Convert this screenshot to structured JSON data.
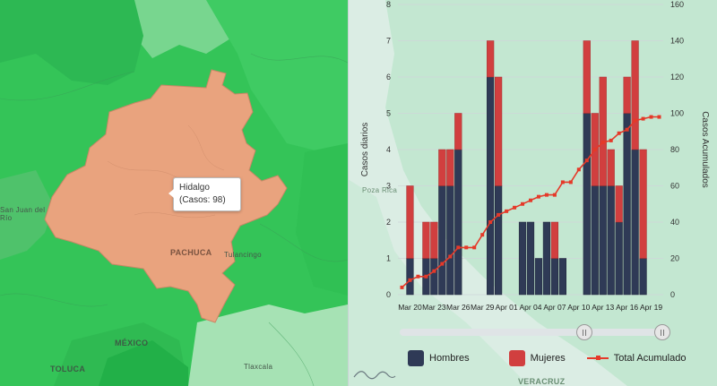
{
  "map": {
    "tooltip_title": "Hidalgo",
    "tooltip_cases": "(Casos: 98)",
    "labels": {
      "pachuca": "PACHUCA",
      "tulancingo": "Tulancingo",
      "san_juan": "San Juan del Río",
      "toluca": "TOLUCA",
      "tlaxcala": "Tlaxcala",
      "veracruz": "VERACRUZ",
      "poza_rica": "Poza Rica",
      "mexico": "MÉXICO"
    },
    "colors": {
      "highlight": "#e9a37e",
      "green_dark": "#2fc150",
      "green_light": "#8fdca0"
    }
  },
  "legend": {
    "hombres": "Hombres",
    "mujeres": "Mujeres",
    "total": "Total Acumulado"
  },
  "chart_data": {
    "type": "bar",
    "ylabel": "Casos diarios",
    "y2label": "Casos Acumulados",
    "ylim": [
      0,
      8
    ],
    "y2lim": [
      0,
      160
    ],
    "yticks": [
      0,
      1,
      2,
      3,
      4,
      5,
      6,
      7,
      8
    ],
    "y2ticks": [
      0,
      20,
      40,
      60,
      80,
      100,
      120,
      140,
      160
    ],
    "x_tick_labels": [
      "Mar 20",
      "Mar 23",
      "Mar 26",
      "Mar 29",
      "Apr 01",
      "Apr 04",
      "Apr 07",
      "Apr 10",
      "Apr 13",
      "Apr 16",
      "Apr 19"
    ],
    "categories": [
      "Mar 19",
      "Mar 20",
      "Mar 21",
      "Mar 22",
      "Mar 23",
      "Mar 24",
      "Mar 25",
      "Mar 26",
      "Mar 27",
      "Mar 28",
      "Mar 29",
      "Mar 30",
      "Mar 31",
      "Apr 01",
      "Apr 02",
      "Apr 03",
      "Apr 04",
      "Apr 05",
      "Apr 06",
      "Apr 07",
      "Apr 08",
      "Apr 09",
      "Apr 10",
      "Apr 11",
      "Apr 12",
      "Apr 13",
      "Apr 14",
      "Apr 15",
      "Apr 16",
      "Apr 17",
      "Apr 18",
      "Apr 19",
      "Apr 20"
    ],
    "series": [
      {
        "name": "Hombres",
        "color": "#2f3a56",
        "values": [
          0,
          1,
          0,
          1,
          1,
          3,
          3,
          4,
          0,
          0,
          0,
          6,
          3,
          0,
          0,
          2,
          2,
          1,
          2,
          1,
          1,
          0,
          0,
          5,
          3,
          3,
          3,
          2,
          5,
          4,
          1,
          0,
          0
        ]
      },
      {
        "name": "Mujeres",
        "color": "#d13f3f",
        "values": [
          0,
          2,
          0,
          1,
          1,
          1,
          1,
          1,
          0,
          0,
          0,
          1,
          3,
          0,
          0,
          0,
          0,
          0,
          0,
          1,
          0,
          0,
          0,
          2,
          2,
          3,
          1,
          1,
          1,
          3,
          3,
          0,
          0
        ]
      },
      {
        "name": "Total Acumulado",
        "color": "#e53929",
        "values": [
          4,
          8,
          10,
          10,
          13,
          17,
          21,
          26,
          26,
          26,
          33,
          40,
          44,
          46,
          48,
          50,
          52,
          54,
          55,
          55,
          62,
          62,
          69,
          74,
          80,
          84,
          85,
          89,
          91,
          96,
          97,
          98,
          98
        ]
      }
    ],
    "grid": true
  }
}
